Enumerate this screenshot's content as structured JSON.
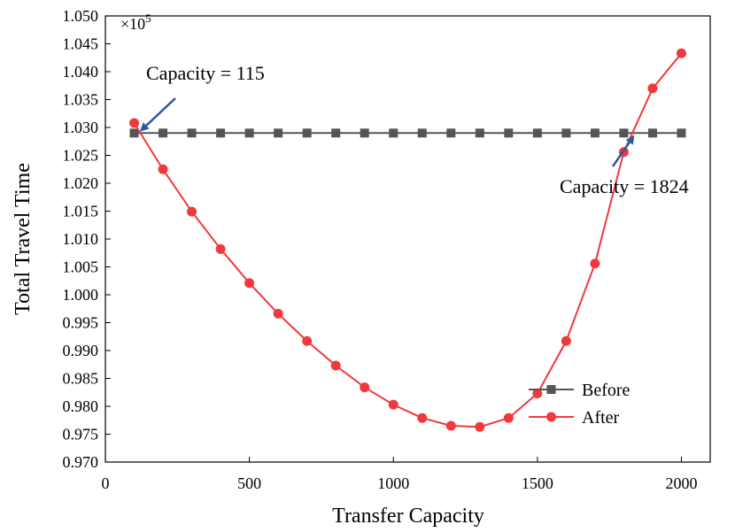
{
  "chart_data": {
    "type": "line",
    "xlabel": "Transfer Capacity",
    "ylabel": "Total Travel Time",
    "y_multiplier_base": "×10",
    "y_multiplier_exp": "5",
    "xlim": [
      0,
      2100
    ],
    "ylim": [
      0.97,
      1.05
    ],
    "x_ticks": [
      0,
      500,
      1000,
      1500,
      2000
    ],
    "y_ticks": [
      0.97,
      0.975,
      0.98,
      0.985,
      0.99,
      0.995,
      1.0,
      1.005,
      1.01,
      1.015,
      1.02,
      1.025,
      1.03,
      1.035,
      1.04,
      1.045,
      1.05
    ],
    "x_tick_labels": [
      "0",
      "500",
      "1000",
      "1500",
      "2000"
    ],
    "y_tick_labels": [
      "0.970",
      "0.975",
      "0.980",
      "0.985",
      "0.990",
      "0.995",
      "1.000",
      "1.005",
      "1.010",
      "1.015",
      "1.020",
      "1.025",
      "1.030",
      "1.035",
      "1.040",
      "1.045",
      "1.050"
    ],
    "legend_position": "bottom-right",
    "series": [
      {
        "name": "Before",
        "color": "#555555",
        "marker": "square",
        "x": [
          100,
          200,
          300,
          400,
          500,
          600,
          700,
          800,
          900,
          1000,
          1100,
          1200,
          1300,
          1400,
          1500,
          1600,
          1700,
          1800,
          1900,
          2000
        ],
        "values": [
          1.029,
          1.029,
          1.029,
          1.029,
          1.029,
          1.029,
          1.029,
          1.029,
          1.029,
          1.029,
          1.029,
          1.029,
          1.029,
          1.029,
          1.029,
          1.029,
          1.029,
          1.029,
          1.029,
          1.029
        ]
      },
      {
        "name": "After",
        "color": "#f0393d",
        "marker": "circle",
        "x": [
          100,
          200,
          300,
          400,
          500,
          600,
          700,
          800,
          900,
          1000,
          1100,
          1200,
          1300,
          1400,
          1500,
          1600,
          1700,
          1800,
          1900,
          2000
        ],
        "values": [
          1.0308,
          1.0225,
          1.0149,
          1.0082,
          1.0021,
          0.9966,
          0.9917,
          0.9873,
          0.9834,
          0.9803,
          0.9779,
          0.9765,
          0.9763,
          0.9779,
          0.9823,
          0.9917,
          1.0056,
          1.0256,
          1.037,
          1.0433
        ]
      }
    ],
    "annotations": [
      {
        "text": "Capacity = 115",
        "x": 115,
        "y": 1.029,
        "color": "#2e5a9c"
      },
      {
        "text": "Capacity = 1824",
        "x": 1824,
        "y": 1.029,
        "color": "#2e5a9c"
      }
    ]
  }
}
